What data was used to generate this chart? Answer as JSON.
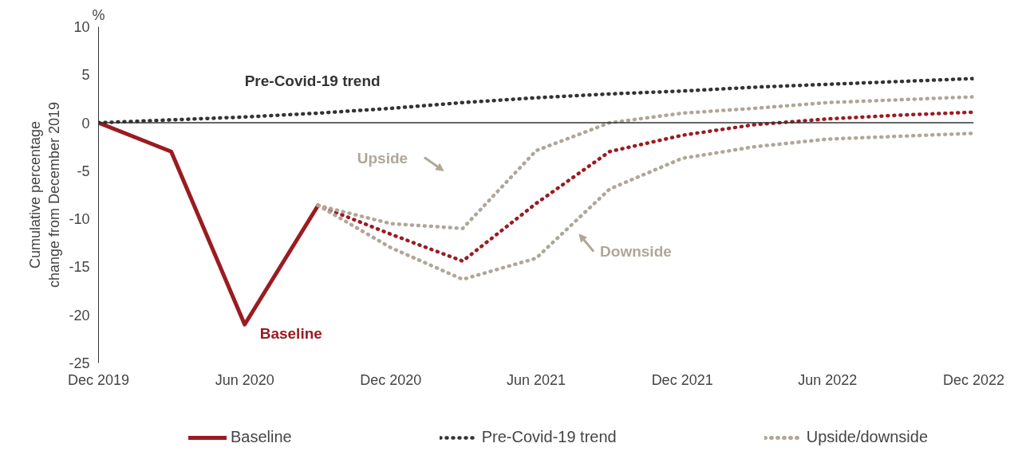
{
  "chart_data": {
    "type": "line",
    "ylabel": "Cumulative percentage change from December 2019",
    "x": [
      "2019-12",
      "2020-03",
      "2020-06",
      "2020-09",
      "2020-12",
      "2021-03",
      "2021-06",
      "2021-09",
      "2021-12",
      "2022-03",
      "2022-06",
      "2022-09",
      "2022-12"
    ],
    "series": [
      {
        "name": "Baseline",
        "color": "#9b1b22",
        "line_style": "solid",
        "x": [
          "2019-12",
          "2020-03",
          "2020-06",
          "2020-09"
        ],
        "values": [
          0,
          -3.0,
          -21.0,
          -8.6
        ]
      },
      {
        "color": "#9b1b22",
        "line_style": "dotted",
        "x": [
          "2020-09",
          "2020-12",
          "2021-03",
          "2021-06",
          "2021-09",
          "2021-12",
          "2022-03",
          "2022-06",
          "2022-09",
          "2022-12"
        ],
        "values": [
          -8.6,
          -11.6,
          -14.4,
          -8.4,
          -3.0,
          -1.3,
          -0.2,
          0.4,
          0.8,
          1.1
        ]
      },
      {
        "name": "Pre-Covid-19 trend",
        "color": "#333333",
        "line_style": "dotted",
        "values": [
          0,
          0.3,
          0.6,
          1.0,
          1.5,
          2.1,
          2.6,
          3.0,
          3.3,
          3.7,
          4.0,
          4.3,
          4.6
        ]
      },
      {
        "name": "Upside/downside",
        "color": "#b0a698",
        "line_style": "dotted",
        "x": [
          "2020-09",
          "2020-12",
          "2021-03",
          "2021-06",
          "2021-09",
          "2021-12",
          "2022-03",
          "2022-06",
          "2022-09",
          "2022-12"
        ],
        "values": [
          -8.6,
          -10.5,
          -11.0,
          -2.9,
          0.0,
          1.0,
          1.5,
          2.1,
          2.4,
          2.7
        ]
      },
      {
        "color": "#b0a698",
        "line_style": "dotted",
        "x": [
          "2020-09",
          "2020-12",
          "2021-03",
          "2021-06",
          "2021-09",
          "2021-12",
          "2022-03",
          "2022-06",
          "2022-09",
          "2022-12"
        ],
        "values": [
          -8.6,
          -13.0,
          -16.3,
          -14.1,
          -6.9,
          -3.7,
          -2.5,
          -1.7,
          -1.4,
          -1.1
        ]
      }
    ],
    "annotations": [
      "Pre-Covid-19 trend",
      "Baseline",
      "Upside",
      "Downside",
      "%"
    ],
    "xlim": [
      "2019-12",
      "2022-12"
    ],
    "xticks": [
      {
        "value": "2019-12",
        "label": "Dec 2019"
      },
      {
        "value": "2020-06",
        "label": "Jun 2020"
      },
      {
        "value": "2020-12",
        "label": "Dec 2020"
      },
      {
        "value": "2021-06",
        "label": "Jun 2021"
      },
      {
        "value": "2021-12",
        "label": "Dec 2021"
      },
      {
        "value": "2022-06",
        "label": "Jun 2022"
      },
      {
        "value": "2022-12",
        "label": "Dec 2022"
      }
    ],
    "ylim": [
      -25,
      10
    ],
    "yticks": [
      -25,
      -20,
      -15,
      -10,
      -5,
      0,
      5,
      10
    ],
    "ref_lines": [
      {
        "axis": "y",
        "value": 0,
        "color": "#333333"
      }
    ],
    "grid": false,
    "legend": "bottom"
  }
}
